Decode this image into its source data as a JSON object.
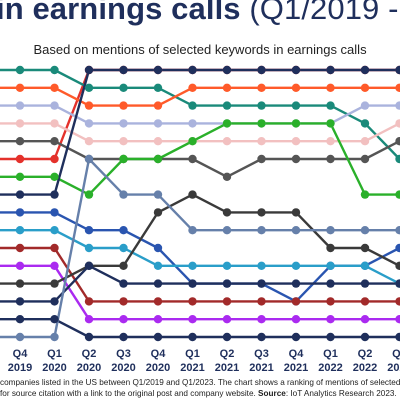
{
  "title_main": "in earnings calls ",
  "title_suffix": "(Q1/2019 -",
  "subtitle": "Based on mentions of selected keywords in earnings calls",
  "footnote": {
    "line1": "companies listed in the US between Q1/2019 and Q1/2023. The chart shows a ranking of mentions of selected keywords during company",
    "line2_pre": "for source citation with a link to the original post and company website. ",
    "line2_source_label": "Source",
    "line2_post": ": IoT Analytics Research 2023."
  },
  "chart_data": {
    "type": "line",
    "x": [
      {
        "q": "Q4",
        "y": "2019"
      },
      {
        "q": "Q1",
        "y": "2020"
      },
      {
        "q": "Q2",
        "y": "2020"
      },
      {
        "q": "Q3",
        "y": "2020"
      },
      {
        "q": "Q4",
        "y": "2020"
      },
      {
        "q": "Q1",
        "y": "2021"
      },
      {
        "q": "Q2",
        "y": "2021"
      },
      {
        "q": "Q3",
        "y": "2021"
      },
      {
        "q": "Q4",
        "y": "2021"
      },
      {
        "q": "Q1",
        "y": "2022"
      },
      {
        "q": "Q2",
        "y": "2022"
      },
      {
        "q": "Q3",
        "y": "2022"
      }
    ],
    "ranks": 16,
    "series": [
      {
        "color": "#e4312b",
        "ranks": [
          6,
          6,
          1,
          1,
          1,
          1,
          1,
          1,
          1,
          1,
          1,
          1
        ]
      },
      {
        "color": "#1a8a7a",
        "ranks": [
          1,
          1,
          2,
          2,
          2,
          3,
          3,
          3,
          3,
          3,
          4,
          6
        ]
      },
      {
        "color": "#ff5a2a",
        "ranks": [
          2,
          2,
          3,
          3,
          3,
          2,
          2,
          2,
          2,
          2,
          2,
          2
        ]
      },
      {
        "color": "#aab3dd",
        "ranks": [
          3,
          3,
          4,
          4,
          4,
          4,
          4,
          4,
          4,
          4,
          3,
          3
        ]
      },
      {
        "color": "#f2c0c0",
        "ranks": [
          4,
          4,
          5,
          5,
          5,
          5,
          5,
          5,
          5,
          5,
          5,
          4
        ]
      },
      {
        "color": "#555555",
        "ranks": [
          5,
          5,
          6,
          6,
          6,
          6,
          7,
          6,
          6,
          6,
          6,
          5
        ]
      },
      {
        "color": "#2ab02a",
        "ranks": [
          7,
          7,
          8,
          6,
          6,
          5,
          4,
          4,
          4,
          4,
          8,
          8
        ]
      },
      {
        "color": "#1f2f5c",
        "ranks": [
          8,
          8,
          1,
          1,
          1,
          1,
          1,
          1,
          1,
          1,
          1,
          1
        ]
      },
      {
        "color": "#2a55b0",
        "ranks": [
          9,
          9,
          10,
          10,
          11,
          13,
          13,
          13,
          14,
          12,
          12,
          11
        ]
      },
      {
        "color": "#2a9ec9",
        "ranks": [
          10,
          10,
          11,
          11,
          12,
          12,
          12,
          12,
          12,
          12,
          12,
          13
        ]
      },
      {
        "color": "#a22a2a",
        "ranks": [
          11,
          11,
          14,
          14,
          14,
          14,
          14,
          14,
          14,
          14,
          14,
          14
        ]
      },
      {
        "color": "#aa2af0",
        "ranks": [
          12,
          12,
          15,
          15,
          15,
          15,
          15,
          15,
          15,
          15,
          15,
          15
        ]
      },
      {
        "color": "#3a3a3a",
        "ranks": [
          13,
          13,
          12,
          12,
          9,
          8,
          9,
          9,
          9,
          11,
          11,
          12
        ]
      },
      {
        "color": "#1f2f5c",
        "ranks": [
          14,
          14,
          12,
          13,
          13,
          13,
          13,
          13,
          13,
          13,
          13,
          13
        ]
      },
      {
        "color": "#1f2f5c",
        "ranks": [
          15,
          15,
          16,
          16,
          16,
          16,
          16,
          16,
          16,
          16,
          16,
          16
        ]
      },
      {
        "color": "#6680aa",
        "ranks": [
          16,
          16,
          6,
          8,
          8,
          10,
          10,
          10,
          10,
          10,
          10,
          10
        ]
      }
    ]
  }
}
